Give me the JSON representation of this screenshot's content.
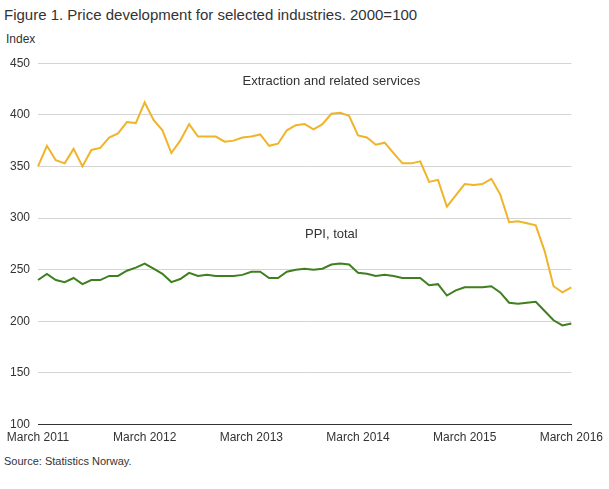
{
  "chart_data": {
    "type": "line",
    "title": "Figure 1. Price development for selected industries. 2000=100",
    "y_label": "Index",
    "source": "Source: Statistics Norway.",
    "categories": [
      "March 2011",
      null,
      null,
      null,
      null,
      null,
      null,
      null,
      null,
      null,
      null,
      null,
      "March 2012",
      null,
      null,
      null,
      null,
      null,
      null,
      null,
      null,
      null,
      null,
      null,
      "March 2013",
      null,
      null,
      null,
      null,
      null,
      null,
      null,
      null,
      null,
      null,
      null,
      "March 2014",
      null,
      null,
      null,
      null,
      null,
      null,
      null,
      null,
      null,
      null,
      null,
      "March 2015",
      null,
      null,
      null,
      null,
      null,
      null,
      null,
      null,
      null,
      null,
      null,
      "March 2016"
    ],
    "series": [
      {
        "name": "Extraction and related services",
        "color": "#f0b428",
        "values": [
          350,
          370,
          356,
          353,
          367,
          350,
          366,
          368,
          378,
          382,
          393,
          392,
          412,
          395,
          385,
          363,
          375,
          391,
          379,
          379,
          379,
          374,
          375,
          378,
          379,
          381,
          370,
          372,
          385,
          390,
          391,
          386,
          391,
          401,
          402,
          399,
          380,
          378,
          371,
          373,
          363,
          353,
          353,
          355,
          335,
          337,
          311,
          322,
          333,
          332,
          333,
          338,
          323,
          296,
          297,
          295,
          293,
          268,
          234,
          228,
          233
        ]
      },
      {
        "name": "PPI, total",
        "color": "#3f7f1f",
        "values": [
          240,
          246,
          240,
          238,
          242,
          236,
          240,
          240,
          244,
          244,
          249,
          252,
          256,
          251,
          246,
          238,
          241,
          247,
          244,
          245,
          244,
          244,
          244,
          245,
          248,
          248,
          242,
          242,
          248,
          250,
          251,
          250,
          251,
          255,
          256,
          255,
          247,
          246,
          244,
          245,
          244,
          242,
          242,
          242,
          235,
          236,
          225,
          230,
          233,
          233,
          233,
          234,
          228,
          218,
          217,
          218,
          219,
          210,
          201,
          196,
          198
        ]
      }
    ],
    "ylim": [
      100,
      450
    ],
    "yticks": [
      100,
      150,
      200,
      250,
      300,
      350,
      400,
      450
    ],
    "grid": true
  }
}
